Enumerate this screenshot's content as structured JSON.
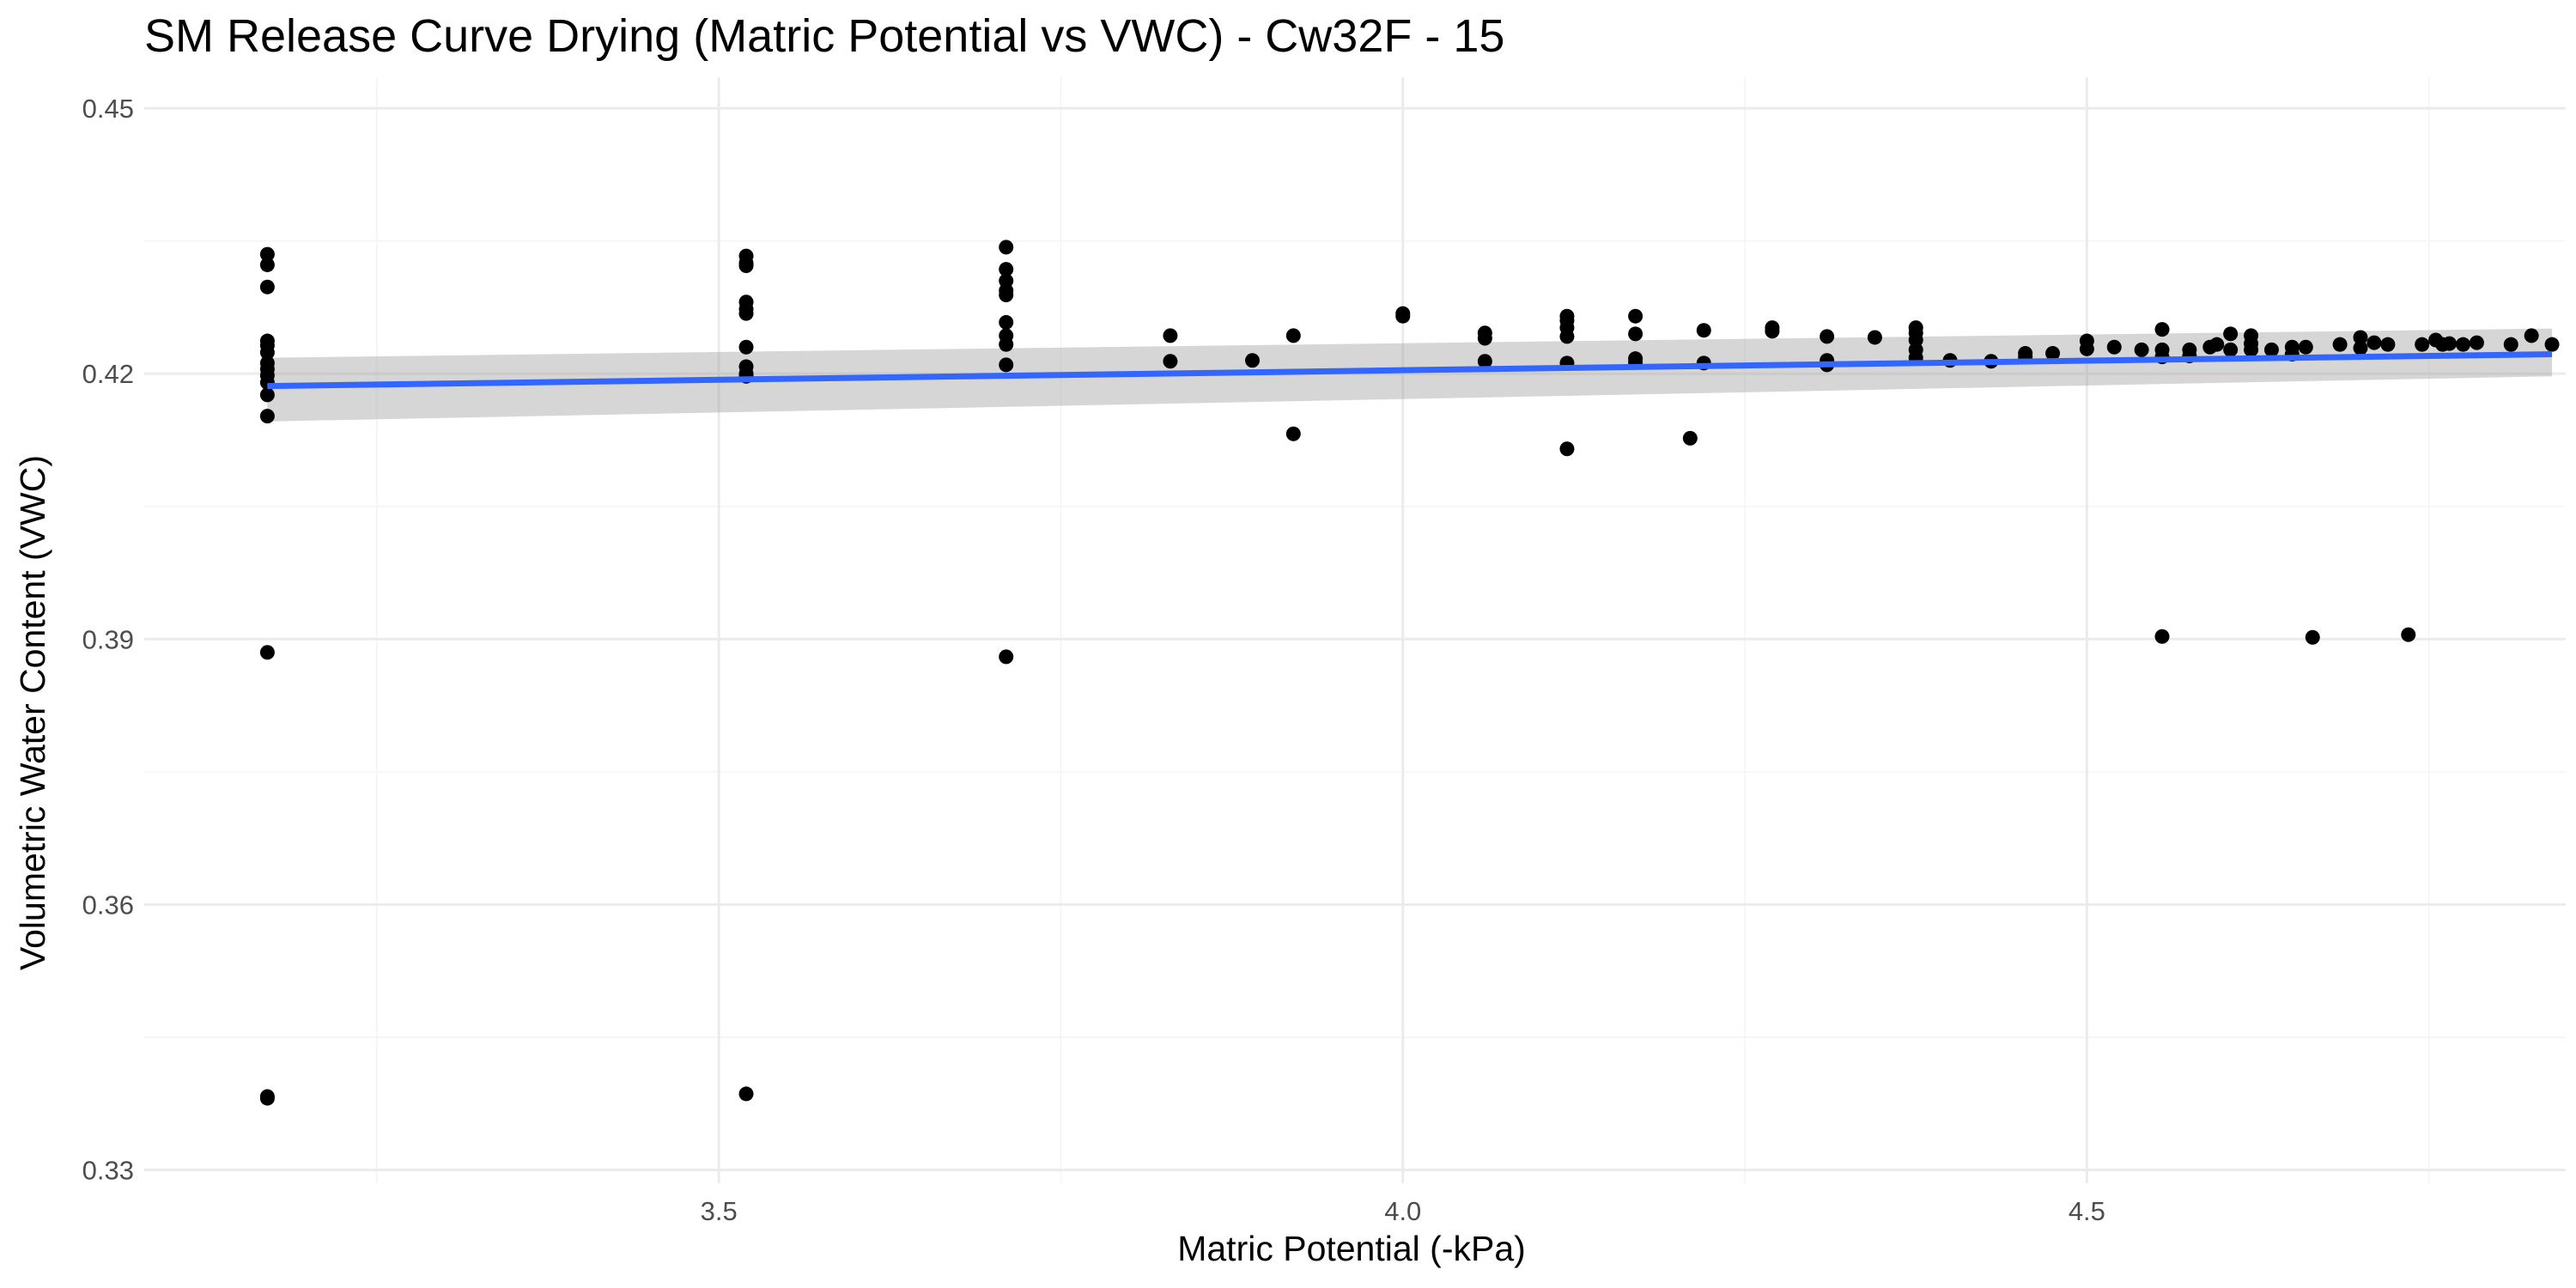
{
  "chart_data": {
    "type": "scatter",
    "title": "SM Release Curve Drying (Matric Potential vs VWC) - Cw32F - 15",
    "xlabel": "Matric Potential (-kPa)",
    "ylabel": "Volumetric Water Content (VWC)",
    "xlim": [
      3.08,
      4.85
    ],
    "ylim": [
      0.3285,
      0.4535
    ],
    "x_ticks": [
      3.5,
      4.0,
      4.5
    ],
    "x_tick_labels": [
      "3.5",
      "4.0",
      "4.5"
    ],
    "y_ticks": [
      0.33,
      0.36,
      0.39,
      0.42,
      0.45
    ],
    "y_tick_labels": [
      "0.33",
      "0.36",
      "0.39",
      "0.42",
      "0.45"
    ],
    "grid": true,
    "legend": "none",
    "colors": {
      "points": "#000000",
      "fit_line": "#3366ff",
      "confidence_band": "#999999",
      "grid": "#ebebeb",
      "background": "#ffffff"
    },
    "points": [
      {
        "x": 3.17,
        "y": 0.4335
      },
      {
        "x": 3.17,
        "y": 0.4323
      },
      {
        "x": 3.17,
        "y": 0.4298
      },
      {
        "x": 3.17,
        "y": 0.4237
      },
      {
        "x": 3.17,
        "y": 0.4232
      },
      {
        "x": 3.17,
        "y": 0.4224
      },
      {
        "x": 3.17,
        "y": 0.4212
      },
      {
        "x": 3.17,
        "y": 0.4205
      },
      {
        "x": 3.17,
        "y": 0.4198
      },
      {
        "x": 3.17,
        "y": 0.419
      },
      {
        "x": 3.17,
        "y": 0.4176
      },
      {
        "x": 3.17,
        "y": 0.4152
      },
      {
        "x": 3.17,
        "y": 0.3885
      },
      {
        "x": 3.17,
        "y": 0.3383
      },
      {
        "x": 3.17,
        "y": 0.3381
      },
      {
        "x": 3.52,
        "y": 0.4333
      },
      {
        "x": 3.52,
        "y": 0.4325
      },
      {
        "x": 3.52,
        "y": 0.4322
      },
      {
        "x": 3.52,
        "y": 0.4281
      },
      {
        "x": 3.52,
        "y": 0.4273
      },
      {
        "x": 3.52,
        "y": 0.4268
      },
      {
        "x": 3.52,
        "y": 0.423
      },
      {
        "x": 3.52,
        "y": 0.4208
      },
      {
        "x": 3.52,
        "y": 0.42
      },
      {
        "x": 3.52,
        "y": 0.4197
      },
      {
        "x": 3.52,
        "y": 0.3386
      },
      {
        "x": 3.71,
        "y": 0.4343
      },
      {
        "x": 3.71,
        "y": 0.4318
      },
      {
        "x": 3.71,
        "y": 0.4305
      },
      {
        "x": 3.71,
        "y": 0.4294
      },
      {
        "x": 3.71,
        "y": 0.4289
      },
      {
        "x": 3.71,
        "y": 0.4258
      },
      {
        "x": 3.71,
        "y": 0.4243
      },
      {
        "x": 3.71,
        "y": 0.4233
      },
      {
        "x": 3.71,
        "y": 0.421
      },
      {
        "x": 3.71,
        "y": 0.388
      },
      {
        "x": 3.83,
        "y": 0.4243
      },
      {
        "x": 3.83,
        "y": 0.4214
      },
      {
        "x": 3.89,
        "y": 0.4215
      },
      {
        "x": 3.92,
        "y": 0.4243
      },
      {
        "x": 3.92,
        "y": 0.4132
      },
      {
        "x": 4.0,
        "y": 0.4268
      },
      {
        "x": 4.0,
        "y": 0.4265
      },
      {
        "x": 4.06,
        "y": 0.4246
      },
      {
        "x": 4.06,
        "y": 0.424
      },
      {
        "x": 4.06,
        "y": 0.4214
      },
      {
        "x": 4.12,
        "y": 0.4265
      },
      {
        "x": 4.12,
        "y": 0.426
      },
      {
        "x": 4.12,
        "y": 0.4252
      },
      {
        "x": 4.12,
        "y": 0.4242
      },
      {
        "x": 4.12,
        "y": 0.4212
      },
      {
        "x": 4.12,
        "y": 0.4115
      },
      {
        "x": 4.17,
        "y": 0.4265
      },
      {
        "x": 4.17,
        "y": 0.4245
      },
      {
        "x": 4.17,
        "y": 0.4217
      },
      {
        "x": 4.17,
        "y": 0.4213
      },
      {
        "x": 4.21,
        "y": 0.4127
      },
      {
        "x": 4.22,
        "y": 0.4249
      },
      {
        "x": 4.22,
        "y": 0.4212
      },
      {
        "x": 4.27,
        "y": 0.4252
      },
      {
        "x": 4.27,
        "y": 0.4248
      },
      {
        "x": 4.31,
        "y": 0.4242
      },
      {
        "x": 4.31,
        "y": 0.4215
      },
      {
        "x": 4.31,
        "y": 0.421
      },
      {
        "x": 4.345,
        "y": 0.4241
      },
      {
        "x": 4.375,
        "y": 0.4252
      },
      {
        "x": 4.375,
        "y": 0.4246
      },
      {
        "x": 4.375,
        "y": 0.4238
      },
      {
        "x": 4.375,
        "y": 0.4227
      },
      {
        "x": 4.375,
        "y": 0.4218
      },
      {
        "x": 4.4,
        "y": 0.4215
      },
      {
        "x": 4.43,
        "y": 0.4214
      },
      {
        "x": 4.455,
        "y": 0.4223
      },
      {
        "x": 4.455,
        "y": 0.4219
      },
      {
        "x": 4.475,
        "y": 0.4223
      },
      {
        "x": 4.5,
        "y": 0.4237
      },
      {
        "x": 4.5,
        "y": 0.4228
      },
      {
        "x": 4.52,
        "y": 0.423
      },
      {
        "x": 4.54,
        "y": 0.4227
      },
      {
        "x": 4.555,
        "y": 0.425
      },
      {
        "x": 4.555,
        "y": 0.4227
      },
      {
        "x": 4.555,
        "y": 0.4219
      },
      {
        "x": 4.555,
        "y": 0.3903
      },
      {
        "x": 4.575,
        "y": 0.4227
      },
      {
        "x": 4.575,
        "y": 0.422
      },
      {
        "x": 4.59,
        "y": 0.423
      },
      {
        "x": 4.595,
        "y": 0.4233
      },
      {
        "x": 4.605,
        "y": 0.4245
      },
      {
        "x": 4.605,
        "y": 0.4227
      },
      {
        "x": 4.62,
        "y": 0.4243
      },
      {
        "x": 4.62,
        "y": 0.4234
      },
      {
        "x": 4.62,
        "y": 0.4227
      },
      {
        "x": 4.635,
        "y": 0.4227
      },
      {
        "x": 4.65,
        "y": 0.423
      },
      {
        "x": 4.65,
        "y": 0.4222
      },
      {
        "x": 4.66,
        "y": 0.423
      },
      {
        "x": 4.665,
        "y": 0.3902
      },
      {
        "x": 4.685,
        "y": 0.4233
      },
      {
        "x": 4.7,
        "y": 0.4241
      },
      {
        "x": 4.7,
        "y": 0.4229
      },
      {
        "x": 4.71,
        "y": 0.4235
      },
      {
        "x": 4.72,
        "y": 0.4233
      },
      {
        "x": 4.735,
        "y": 0.3905
      },
      {
        "x": 4.745,
        "y": 0.4233
      },
      {
        "x": 4.755,
        "y": 0.4238
      },
      {
        "x": 4.76,
        "y": 0.4233
      },
      {
        "x": 4.765,
        "y": 0.4234
      },
      {
        "x": 4.775,
        "y": 0.4233
      },
      {
        "x": 4.785,
        "y": 0.4235
      },
      {
        "x": 4.81,
        "y": 0.4233
      },
      {
        "x": 4.825,
        "y": 0.4243
      },
      {
        "x": 4.84,
        "y": 0.4233
      }
    ],
    "fit_line": {
      "method": "linear",
      "x": [
        3.17,
        4.84
      ],
      "y": [
        0.4186,
        0.4222
      ],
      "ci_lower": [
        0.4146,
        0.4197
      ],
      "ci_upper": [
        0.4218,
        0.4251
      ]
    }
  }
}
